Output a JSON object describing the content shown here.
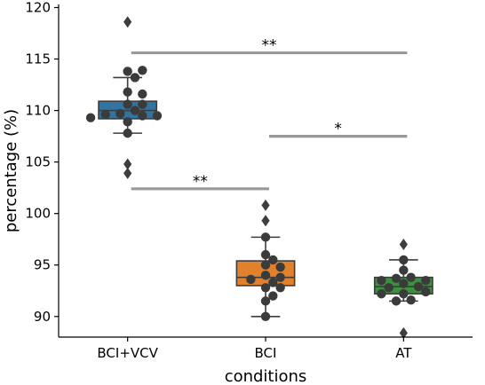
{
  "chart_data": {
    "type": "box",
    "xlabel": "conditions",
    "ylabel": "percentage (%)",
    "ylim": [
      88.0,
      120.3
    ],
    "yticks": [
      90,
      95,
      100,
      105,
      110,
      115,
      120
    ],
    "grid": false,
    "categories": [
      "BCI+VCV",
      "BCI",
      "AT"
    ],
    "colors": {
      "BCI+VCV": "#3274a1",
      "BCI": "#e1812c",
      "AT": "#3a923a",
      "point": "#3b3b3b",
      "significance": "#999999"
    },
    "boxes": [
      {
        "name": "BCI+VCV",
        "q1": 109.2,
        "median": 110.0,
        "q3": 110.9,
        "whisker_low": 107.8,
        "whisker_high": 113.2,
        "outliers": [
          118.6,
          104.8,
          103.9
        ]
      },
      {
        "name": "BCI",
        "q1": 93.0,
        "median": 93.8,
        "q3": 95.4,
        "whisker_low": 90.0,
        "whisker_high": 97.7,
        "outliers": [
          100.8,
          99.3
        ]
      },
      {
        "name": "AT",
        "q1": 92.2,
        "median": 92.9,
        "q3": 93.8,
        "whisker_low": 91.5,
        "whisker_high": 95.5,
        "outliers": [
          97.0,
          88.4
        ]
      }
    ],
    "points": [
      {
        "name": "BCI+VCV",
        "values": [
          113.8,
          113.9,
          113.2,
          111.8,
          111.6,
          110.6,
          110.6,
          110.0,
          109.7,
          109.5,
          109.6,
          109.5,
          109.3,
          108.9,
          107.8
        ]
      },
      {
        "name": "BCI",
        "values": [
          97.7,
          96.0,
          95.5,
          95.0,
          94.8,
          94.0,
          93.8,
          93.3,
          93.6,
          92.8,
          92.8,
          92.0,
          91.5,
          90.0
        ]
      },
      {
        "name": "AT",
        "values": [
          95.5,
          94.5,
          93.8,
          93.7,
          93.5,
          93.5,
          93.2,
          92.9,
          92.8,
          92.2,
          92.4,
          92.2,
          91.6,
          91.5
        ]
      }
    ],
    "significance": [
      {
        "from": "BCI+VCV",
        "to": "AT",
        "y": 115.6,
        "label": "**"
      },
      {
        "from": "BCI",
        "to": "AT",
        "y": 107.5,
        "label": "*"
      },
      {
        "from": "BCI+VCV",
        "to": "BCI",
        "y": 102.4,
        "label": "**"
      }
    ]
  }
}
